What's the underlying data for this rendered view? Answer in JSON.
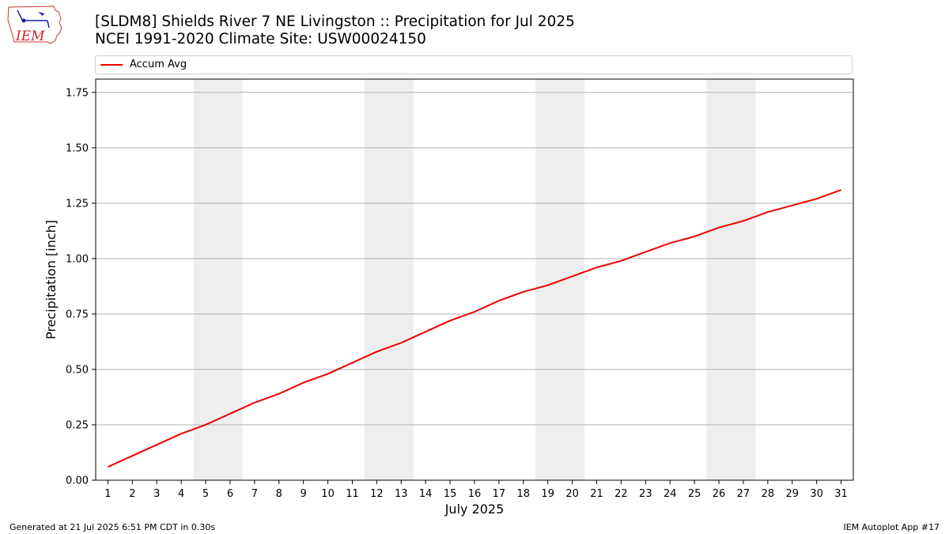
{
  "header": {
    "title_line1": "[SLDM8] Shields River 7 NE Livingston :: Precipitation for Jul 2025",
    "title_line2": "NCEI 1991-2020 Climate Site: USW00024150"
  },
  "logo": {
    "text": "IEM",
    "icon": "iem-weather-station-logo"
  },
  "footer": {
    "left": "Generated at 21 Jul 2025 6:51 PM CDT in 0.30s",
    "right": "IEM Autoplot App #17"
  },
  "colors": {
    "series": "#ee0000",
    "weekend_band": "#eeeeee",
    "grid": "#b0b0b0"
  },
  "chart_data": {
    "type": "line",
    "title": "[SLDM8] Shields River 7 NE Livingston :: Precipitation for Jul 2025",
    "subtitle": "NCEI 1991-2020 Climate Site: USW00024150",
    "xlabel": "July 2025",
    "ylabel": "Precipitation [inch]",
    "xlim": [
      0.5,
      31.5
    ],
    "ylim": [
      0,
      1.81
    ],
    "grid": "y",
    "legend": "top",
    "x": [
      1,
      2,
      3,
      4,
      5,
      6,
      7,
      8,
      9,
      10,
      11,
      12,
      13,
      14,
      15,
      16,
      17,
      18,
      19,
      20,
      21,
      22,
      23,
      24,
      25,
      26,
      27,
      28,
      29,
      30,
      31
    ],
    "x_tick_labels": [
      "1",
      "2",
      "3",
      "4",
      "5",
      "6",
      "7",
      "8",
      "9",
      "10",
      "11",
      "12",
      "13",
      "14",
      "15",
      "16",
      "17",
      "18",
      "19",
      "20",
      "21",
      "22",
      "23",
      "24",
      "25",
      "26",
      "27",
      "28",
      "29",
      "30",
      "31"
    ],
    "y_ticks": [
      0,
      0.25,
      0.5,
      0.75,
      1.0,
      1.25,
      1.5,
      1.75
    ],
    "y_tick_labels": [
      "0.00",
      "0.25",
      "0.50",
      "0.75",
      "1.00",
      "1.25",
      "1.50",
      "1.75"
    ],
    "weekend_bands": [
      [
        4.5,
        6.5
      ],
      [
        11.5,
        13.5
      ],
      [
        18.5,
        20.5
      ],
      [
        25.5,
        27.5
      ]
    ],
    "series": [
      {
        "name": "Accum Avg",
        "color": "#ee0000",
        "values": [
          0.06,
          0.11,
          0.16,
          0.21,
          0.25,
          0.3,
          0.35,
          0.39,
          0.44,
          0.48,
          0.53,
          0.58,
          0.62,
          0.67,
          0.72,
          0.76,
          0.81,
          0.85,
          0.88,
          0.92,
          0.96,
          0.99,
          1.03,
          1.07,
          1.1,
          1.14,
          1.17,
          1.21,
          1.24,
          1.27,
          1.31
        ]
      }
    ]
  }
}
